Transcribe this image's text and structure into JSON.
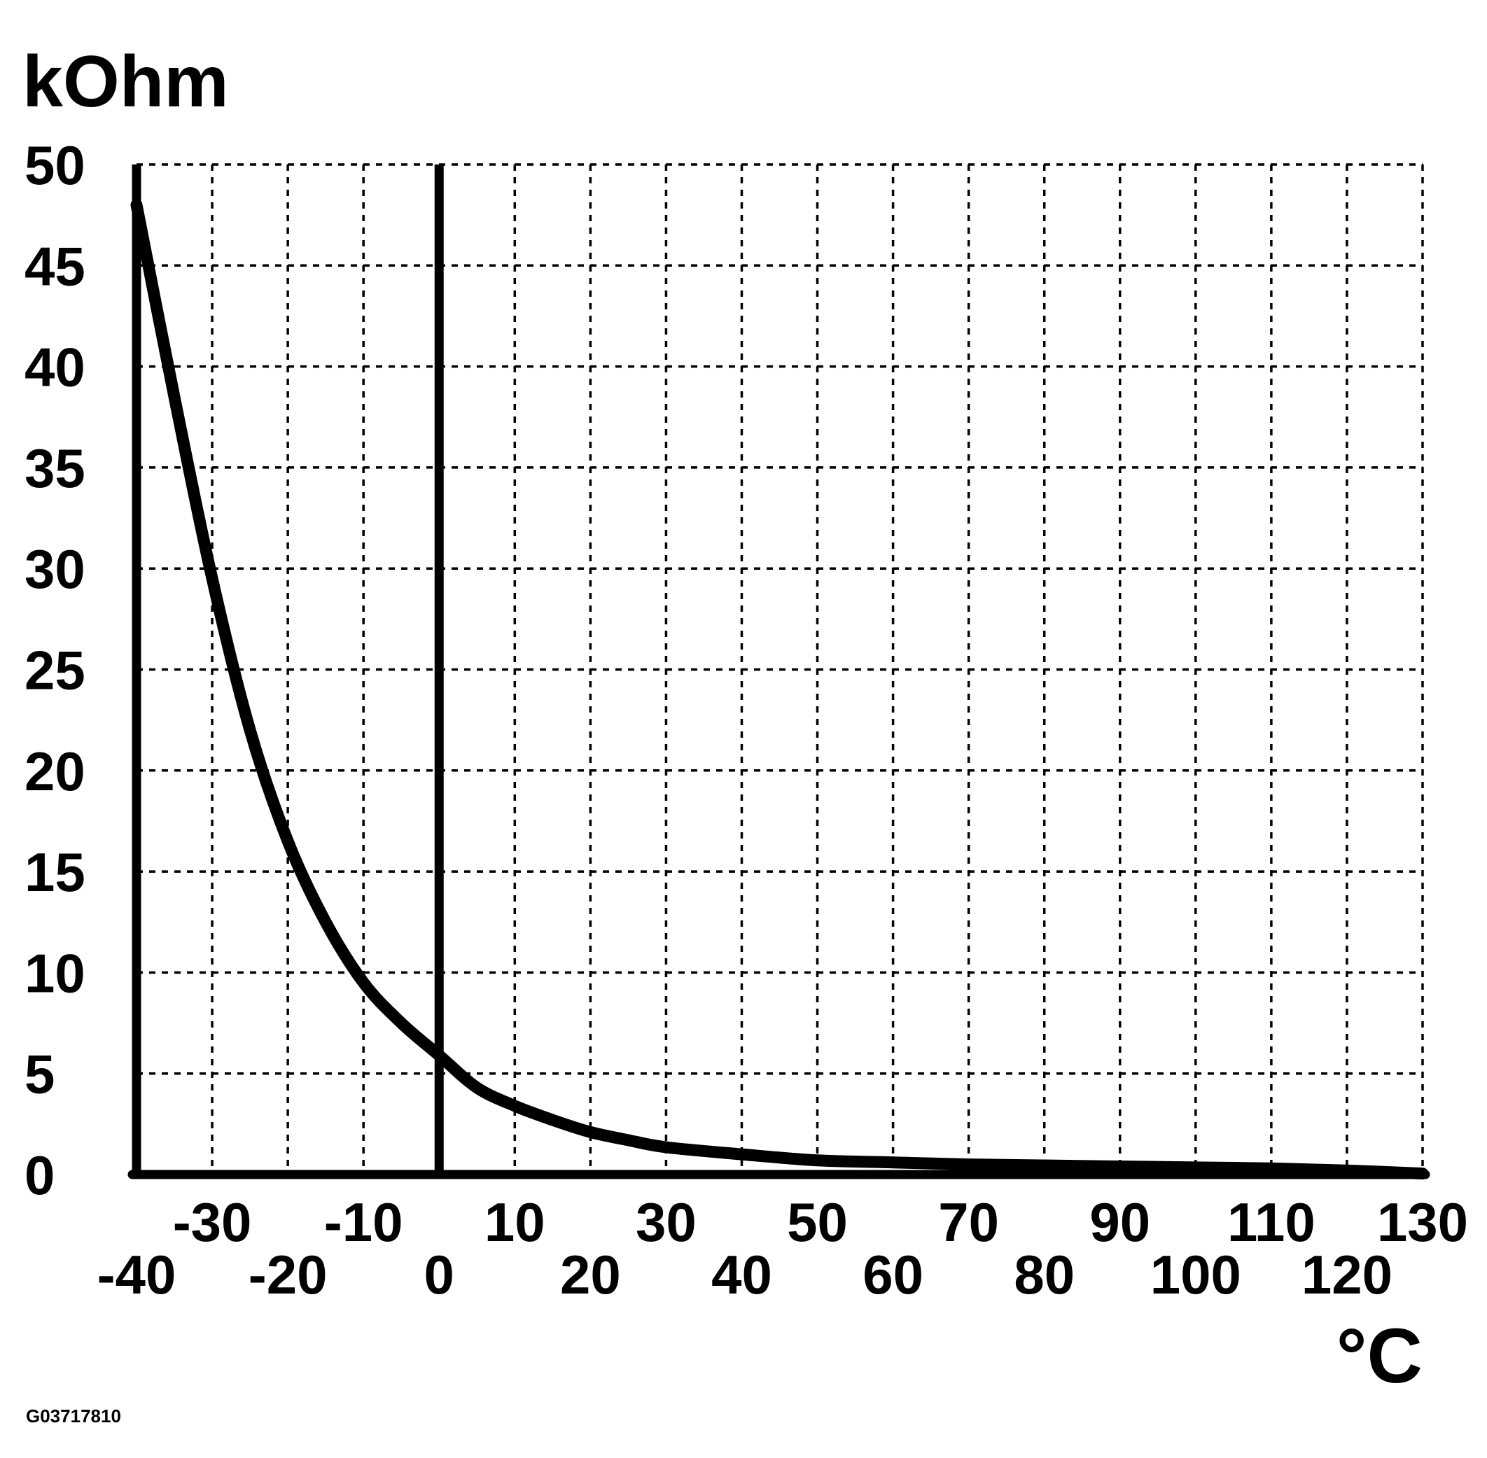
{
  "chart_data": {
    "type": "line",
    "title": "",
    "xlabel": "°C",
    "ylabel": "kOhm",
    "xlim": [
      -40,
      130
    ],
    "ylim": [
      0,
      50
    ],
    "grid": true,
    "x_ticks_upper": [
      "-30",
      "-10",
      "10",
      "30",
      "50",
      "70",
      "90",
      "110",
      "130"
    ],
    "x_ticks_lower": [
      "-40",
      "-20",
      "0",
      "20",
      "40",
      "60",
      "80",
      "100",
      "120"
    ],
    "y_ticks": [
      "0",
      "5",
      "10",
      "15",
      "20",
      "25",
      "30",
      "35",
      "40",
      "45",
      "50"
    ],
    "series": [
      {
        "x": [
          -40,
          -35,
          -30,
          -25,
          -20,
          -15,
          -10,
          -5,
          0,
          5,
          10,
          15,
          20,
          25,
          30,
          40,
          50,
          60,
          70,
          80,
          90,
          100,
          110,
          120,
          130
        ],
        "y": [
          48,
          38.5,
          29.5,
          22,
          16.5,
          12.5,
          9.5,
          7.5,
          5.9,
          4.3,
          3.4,
          2.7,
          2.1,
          1.7,
          1.35,
          1.0,
          0.7,
          0.6,
          0.5,
          0.45,
          0.4,
          0.35,
          0.3,
          0.2,
          0.05
        ]
      }
    ]
  },
  "figure_code": "G03717810",
  "colors": {
    "ink": "#000000",
    "background": "#ffffff"
  }
}
